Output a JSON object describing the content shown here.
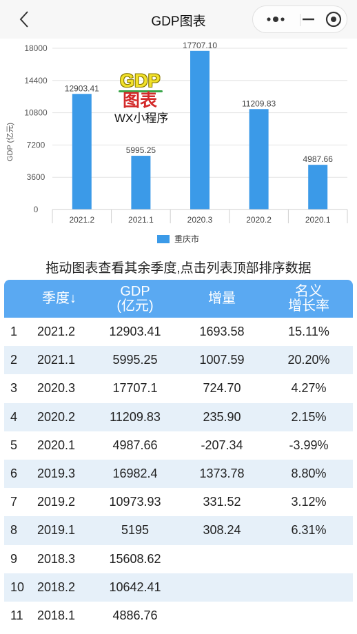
{
  "nav": {
    "title": "GDP图表"
  },
  "chart_data": {
    "type": "bar",
    "categories": [
      "2021.2",
      "2021.1",
      "2020.3",
      "2020.2",
      "2020.1"
    ],
    "series": [
      {
        "name": "重庆市",
        "values": [
          12903.41,
          5995.25,
          17707.1,
          11209.83,
          4987.66
        ],
        "color": "#3b9ae8"
      }
    ],
    "data_labels": [
      "12903.41",
      "5995.25",
      "17707.10",
      "11209.83",
      "4987.66"
    ],
    "ylabel": "GDP (亿元)",
    "yticks": [
      0,
      3600,
      7200,
      10800,
      14400,
      18000
    ],
    "ytick_labels": [
      "0",
      "3600",
      "7200",
      "10800",
      "14400",
      "18000"
    ],
    "ylim": [
      0,
      18000
    ],
    "grid": true,
    "legend": "bottom"
  },
  "watermark": {
    "gdp": "GDP",
    "tubiao": "图表",
    "wx": "WX小程序"
  },
  "hint": "拖动图表查看其余季度,点击列表顶部排序数据",
  "table": {
    "headers": {
      "quarter": "季度↓",
      "gdp_line1": "GDP",
      "gdp_line2": "(亿元)",
      "increase": "增量",
      "rate_line1": "名义",
      "rate_line2": "增长率"
    },
    "rows": [
      {
        "idx": "1",
        "quarter": "2021.2",
        "gdp": "12903.41",
        "increase": "1693.58",
        "rate": "15.11%"
      },
      {
        "idx": "2",
        "quarter": "2021.1",
        "gdp": "5995.25",
        "increase": "1007.59",
        "rate": "20.20%"
      },
      {
        "idx": "3",
        "quarter": "2020.3",
        "gdp": "17707.1",
        "increase": "724.70",
        "rate": "4.27%"
      },
      {
        "idx": "4",
        "quarter": "2020.2",
        "gdp": "11209.83",
        "increase": "235.90",
        "rate": "2.15%"
      },
      {
        "idx": "5",
        "quarter": "2020.1",
        "gdp": "4987.66",
        "increase": "-207.34",
        "rate": "-3.99%"
      },
      {
        "idx": "6",
        "quarter": "2019.3",
        "gdp": "16982.4",
        "increase": "1373.78",
        "rate": "8.80%"
      },
      {
        "idx": "7",
        "quarter": "2019.2",
        "gdp": "10973.93",
        "increase": "331.52",
        "rate": "3.12%"
      },
      {
        "idx": "8",
        "quarter": "2019.1",
        "gdp": "5195",
        "increase": "308.24",
        "rate": "6.31%"
      },
      {
        "idx": "9",
        "quarter": "2018.3",
        "gdp": "15608.62",
        "increase": "",
        "rate": ""
      },
      {
        "idx": "10",
        "quarter": "2018.2",
        "gdp": "10642.41",
        "increase": "",
        "rate": ""
      },
      {
        "idx": "11",
        "quarter": "2018.1",
        "gdp": "4886.76",
        "increase": "",
        "rate": ""
      }
    ]
  },
  "colors": {
    "bar": "#3b9ae8",
    "header": "#5aa9f2",
    "alt_row": "#e6f0f9"
  }
}
